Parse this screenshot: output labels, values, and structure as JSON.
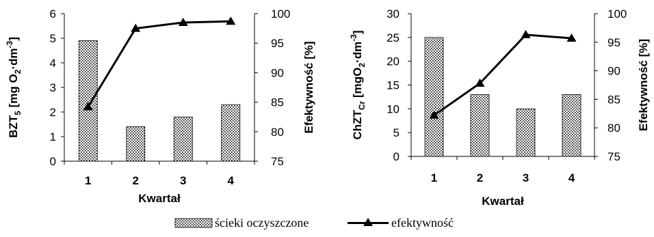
{
  "chart_data": [
    {
      "type": "bar",
      "categories": [
        "1",
        "2",
        "3",
        "4"
      ],
      "xlabel": "Kwartał",
      "ylabel": {
        "main": "BZT",
        "sub": "5",
        "unit": "[mg O",
        "unit_sub": "2",
        "unit_rest": "·dm",
        "unit_sup": "-3",
        "close": "]"
      },
      "ylim": [
        0,
        6
      ],
      "yticks": [
        0,
        1,
        2,
        3,
        4,
        5,
        6
      ],
      "y2label": "Efektywność [%]",
      "y2lim": [
        75,
        100
      ],
      "y2ticks": [
        75,
        80,
        85,
        90,
        95,
        100
      ],
      "series": [
        {
          "name": "ścieki oczyszczone",
          "type": "bar",
          "axis": "left",
          "values": [
            4.9,
            1.4,
            1.8,
            2.3
          ]
        },
        {
          "name": "efektywność",
          "type": "line",
          "axis": "right",
          "values": [
            84.2,
            97.5,
            98.5,
            98.7
          ]
        }
      ]
    },
    {
      "type": "bar",
      "categories": [
        "1",
        "2",
        "3",
        "4"
      ],
      "xlabel": "Kwartał",
      "ylabel": {
        "main": "ChZT",
        "sub": "Cr",
        "unit": "[mgO",
        "unit_sub": "2",
        "unit_rest": "·dm",
        "unit_sup": "-3",
        "close": "]"
      },
      "ylim": [
        0,
        30
      ],
      "yticks": [
        0,
        5,
        10,
        15,
        20,
        25,
        30
      ],
      "y2label": "Efektywność [%]",
      "y2lim": [
        75,
        100
      ],
      "y2ticks": [
        75,
        80,
        85,
        90,
        95,
        100
      ],
      "series": [
        {
          "name": "ścieki oczyszczone",
          "type": "bar",
          "axis": "left",
          "values": [
            25,
            13,
            10,
            13
          ]
        },
        {
          "name": "efektywność",
          "type": "line",
          "axis": "right",
          "values": [
            82.2,
            87.8,
            96.3,
            95.7
          ]
        }
      ]
    }
  ],
  "legend": {
    "bar_label": "ścieki oczyszczone",
    "line_label": "efektywność"
  }
}
